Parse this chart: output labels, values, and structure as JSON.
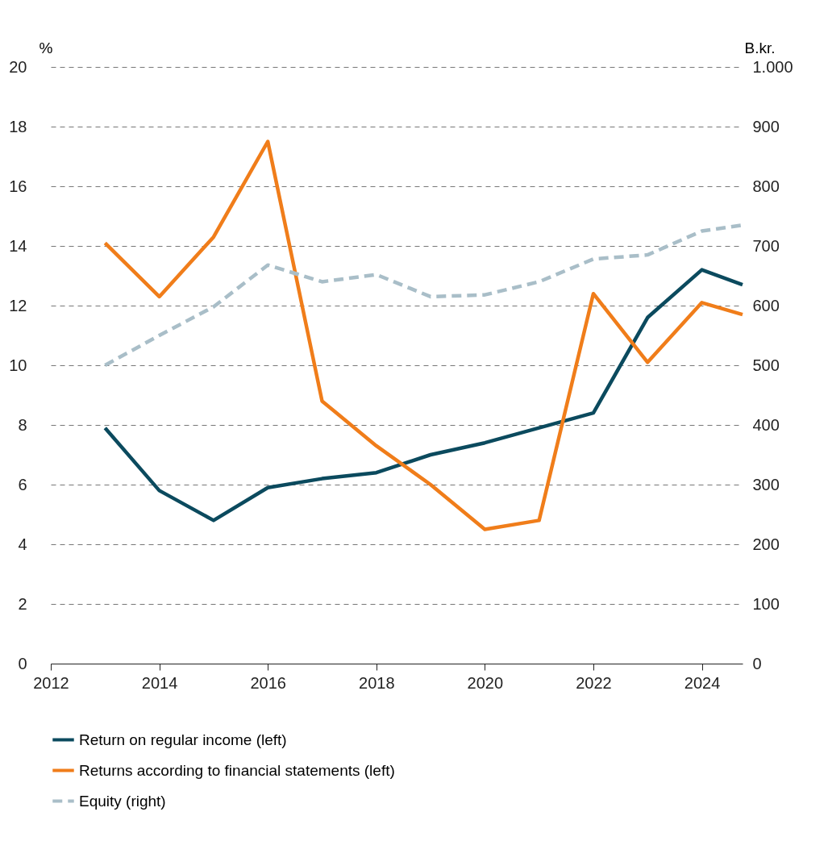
{
  "chart_data": {
    "type": "line",
    "ylabel": "%",
    "y2label": "B.kr.",
    "x": [
      2013,
      2014,
      2015,
      2016,
      2017,
      2018,
      2019,
      2020,
      2021,
      2022,
      2023,
      2024,
      2024.75
    ],
    "xlim": [
      2012,
      2024.75
    ],
    "xticks": [
      2012,
      2014,
      2016,
      2018,
      2020,
      2022,
      2024
    ],
    "ylim": [
      0,
      20
    ],
    "yticks": [
      0,
      2,
      4,
      6,
      8,
      10,
      12,
      14,
      16,
      18,
      20
    ],
    "y2lim": [
      0,
      1000
    ],
    "y2ticks": [
      0,
      100,
      200,
      300,
      400,
      500,
      600,
      700,
      800,
      900,
      {
        "value": 1000,
        "label": "1.000"
      }
    ],
    "grid": "y",
    "legend": "bottom",
    "series": [
      {
        "name": "Return on regular income (left)",
        "color": "#0b4a5e",
        "line_style": "solid",
        "values": [
          7.9,
          5.8,
          4.8,
          5.9,
          6.2,
          6.4,
          7.0,
          7.4,
          7.9,
          8.4,
          11.6,
          13.2,
          12.7
        ]
      },
      {
        "name": "Returns according to financial statements (left)",
        "color": "#f07d1a",
        "line_style": "solid",
        "values": [
          14.1,
          12.3,
          14.3,
          17.5,
          8.8,
          7.3,
          6.0,
          4.5,
          4.8,
          12.4,
          10.1,
          12.1,
          11.7
        ]
      },
      {
        "name": "Equity (right)",
        "color": "#a9bec8",
        "line_style": "dashed",
        "axis": "y2",
        "values": [
          500,
          550,
          598,
          668,
          640,
          652,
          615,
          618,
          640,
          678,
          685,
          725,
          735
        ]
      }
    ]
  }
}
